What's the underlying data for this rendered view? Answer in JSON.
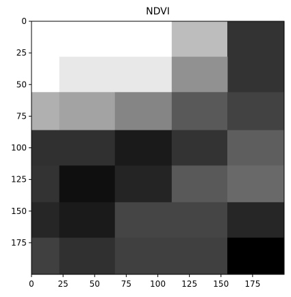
{
  "chart_data": {
    "type": "heatmap",
    "title": "NDVI",
    "colormap": "gray",
    "value_range": [
      0,
      1
    ],
    "x_range": [
      0,
      200
    ],
    "y_range": [
      0,
      200
    ],
    "y_inverted": true,
    "x_ticks": [
      "0",
      "25",
      "50",
      "75",
      "100",
      "125",
      "150",
      "175"
    ],
    "x_tick_values": [
      0,
      25,
      50,
      75,
      100,
      125,
      150,
      175
    ],
    "y_ticks": [
      "0",
      "25",
      "50",
      "75",
      "100",
      "125",
      "150",
      "175"
    ],
    "y_tick_values": [
      0,
      25,
      50,
      75,
      100,
      125,
      150,
      175
    ],
    "cells": [
      {
        "x0": 0,
        "x1": 22,
        "y0": 0,
        "y1": 28,
        "value": 1.0
      },
      {
        "x0": 22,
        "x1": 111,
        "y0": 0,
        "y1": 28,
        "value": 1.0
      },
      {
        "x0": 111,
        "x1": 155,
        "y0": 0,
        "y1": 28,
        "value": 0.74
      },
      {
        "x0": 155,
        "x1": 200,
        "y0": 0,
        "y1": 56,
        "value": 0.2
      },
      {
        "x0": 0,
        "x1": 22,
        "y0": 28,
        "y1": 56,
        "value": 1.0
      },
      {
        "x0": 22,
        "x1": 111,
        "y0": 28,
        "y1": 56,
        "value": 0.91
      },
      {
        "x0": 111,
        "x1": 155,
        "y0": 28,
        "y1": 56,
        "value": 0.57
      },
      {
        "x0": 0,
        "x1": 22,
        "y0": 56,
        "y1": 86,
        "value": 0.69
      },
      {
        "x0": 22,
        "x1": 66,
        "y0": 56,
        "y1": 86,
        "value": 0.64
      },
      {
        "x0": 66,
        "x1": 111,
        "y0": 56,
        "y1": 86,
        "value": 0.52
      },
      {
        "x0": 111,
        "x1": 155,
        "y0": 56,
        "y1": 86,
        "value": 0.35
      },
      {
        "x0": 155,
        "x1": 200,
        "y0": 56,
        "y1": 86,
        "value": 0.26
      },
      {
        "x0": 0,
        "x1": 66,
        "y0": 86,
        "y1": 114,
        "value": 0.19
      },
      {
        "x0": 66,
        "x1": 111,
        "y0": 86,
        "y1": 114,
        "value": 0.1
      },
      {
        "x0": 111,
        "x1": 155,
        "y0": 86,
        "y1": 114,
        "value": 0.2
      },
      {
        "x0": 155,
        "x1": 200,
        "y0": 86,
        "y1": 114,
        "value": 0.37
      },
      {
        "x0": 0,
        "x1": 22,
        "y0": 114,
        "y1": 143,
        "value": 0.2
      },
      {
        "x0": 22,
        "x1": 66,
        "y0": 114,
        "y1": 143,
        "value": 0.06
      },
      {
        "x0": 66,
        "x1": 111,
        "y0": 114,
        "y1": 143,
        "value": 0.14
      },
      {
        "x0": 111,
        "x1": 155,
        "y0": 114,
        "y1": 143,
        "value": 0.35
      },
      {
        "x0": 155,
        "x1": 200,
        "y0": 114,
        "y1": 143,
        "value": 0.41
      },
      {
        "x0": 0,
        "x1": 22,
        "y0": 143,
        "y1": 171,
        "value": 0.15
      },
      {
        "x0": 22,
        "x1": 66,
        "y0": 143,
        "y1": 171,
        "value": 0.1
      },
      {
        "x0": 66,
        "x1": 155,
        "y0": 143,
        "y1": 171,
        "value": 0.27
      },
      {
        "x0": 155,
        "x1": 200,
        "y0": 143,
        "y1": 171,
        "value": 0.15
      },
      {
        "x0": 0,
        "x1": 22,
        "y0": 171,
        "y1": 200,
        "value": 0.25
      },
      {
        "x0": 22,
        "x1": 66,
        "y0": 171,
        "y1": 200,
        "value": 0.19
      },
      {
        "x0": 66,
        "x1": 155,
        "y0": 171,
        "y1": 200,
        "value": 0.25
      },
      {
        "x0": 155,
        "x1": 200,
        "y0": 171,
        "y1": 200,
        "value": 0.0
      }
    ]
  }
}
